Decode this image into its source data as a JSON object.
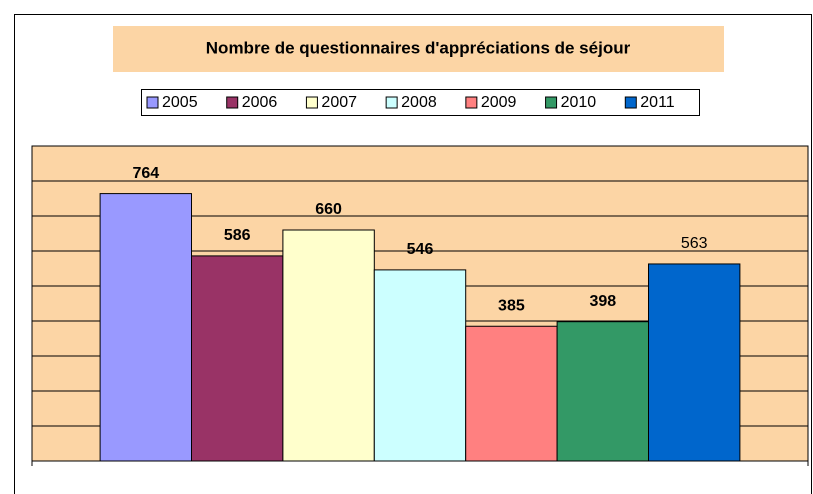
{
  "chart_data": {
    "type": "bar",
    "title": "Nombre de questionnaires d'appréciations de séjour",
    "series": [
      {
        "name": "2005",
        "color": "#9999ff",
        "values": [
          764
        ],
        "label_bold": true
      },
      {
        "name": "2006",
        "color": "#993366",
        "values": [
          586
        ],
        "label_bold": true
      },
      {
        "name": "2007",
        "color": "#ffffcc",
        "values": [
          660
        ],
        "label_bold": true
      },
      {
        "name": "2008",
        "color": "#ccffff",
        "values": [
          546
        ],
        "label_bold": true
      },
      {
        "name": "2009",
        "color": "#ff8080",
        "values": [
          385
        ],
        "label_bold": true
      },
      {
        "name": "2010",
        "color": "#339966",
        "values": [
          398
        ],
        "label_bold": true
      },
      {
        "name": "2011",
        "color": "#0066cc",
        "values": [
          563
        ],
        "label_bold": false
      }
    ],
    "ylim": [
      0,
      900
    ],
    "yticks": [
      0,
      100,
      200,
      300,
      400,
      500,
      600,
      700,
      800,
      900
    ],
    "grid": true,
    "legend": "top",
    "plot_background": "#fcd5a5"
  }
}
